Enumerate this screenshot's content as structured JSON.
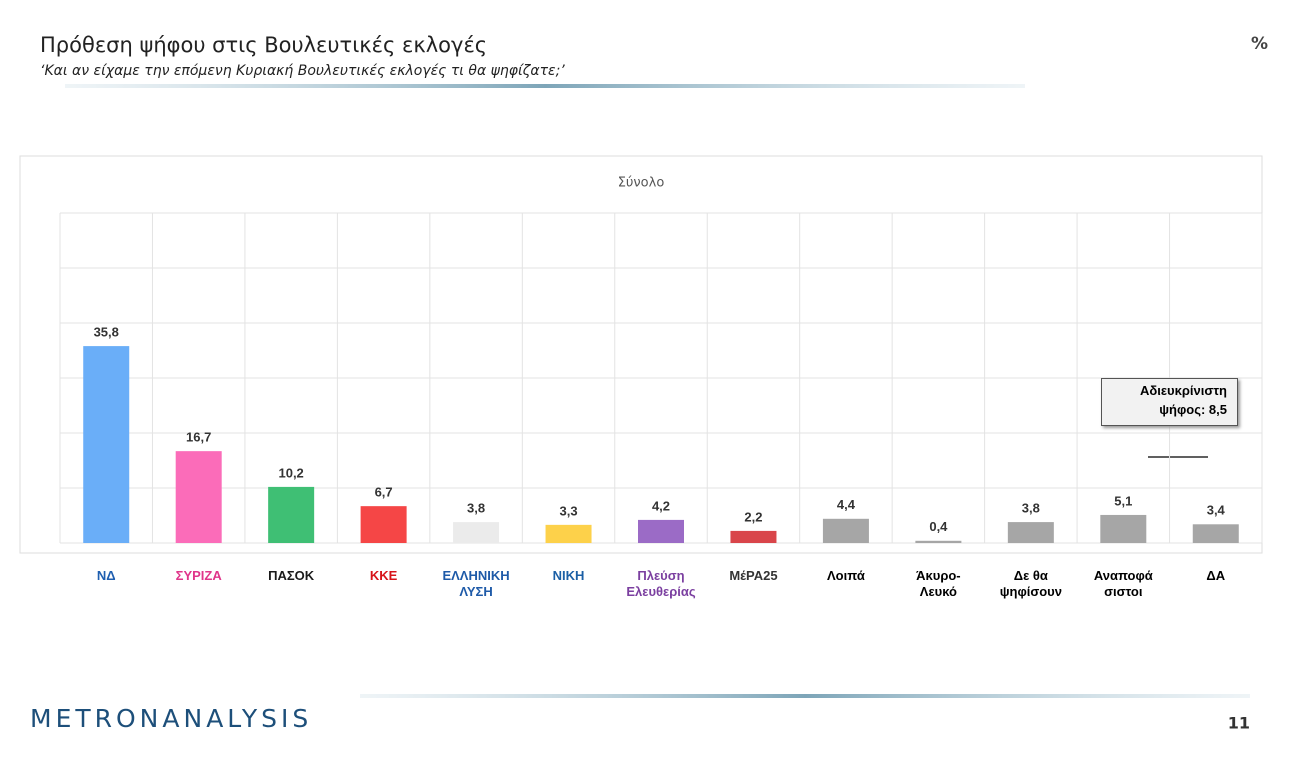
{
  "chart_data": {
    "type": "bar",
    "title": "Πρόθεση ψήφου στις Βουλευτικές εκλογές",
    "subtitle": "‘Και αν είχαμε την επόμενη Κυριακή Βουλευτικές εκλογές τι θα ψηφίζατε;’",
    "unit_label": "%",
    "panel_title": "Σύνολο",
    "categories": [
      "ΝΔ",
      "ΣΥΡΙΖΑ",
      "ΠΑΣΟΚ",
      "ΚΚΕ",
      "ΕΛΛΗΝΙΚΗ\nΛΥΣΗ",
      "ΝΙΚΗ",
      "Πλεύση\nΕλευθερίας",
      "ΜέΡΑ25",
      "Λοιπά",
      "Άκυρο-\nΛευκό",
      "Δε θα\nψηφίσουν",
      "Αναποφά\nσιστοι",
      "ΔΑ"
    ],
    "label_colors": [
      "#1f5fb0",
      "#e0358a",
      "#1a1a1a",
      "#d7141a",
      "#1e5aa8",
      "#1b5fa5",
      "#7b3fa0",
      "#333333",
      "#000000",
      "#000000",
      "#000000",
      "#000000",
      "#000000"
    ],
    "values": [
      35.8,
      16.7,
      10.2,
      6.7,
      3.8,
      3.3,
      4.2,
      2.2,
      4.4,
      0.4,
      3.8,
      5.1,
      3.4
    ],
    "value_labels": [
      "35,8",
      "16,7",
      "10,2",
      "6,7",
      "3,8",
      "3,3",
      "4,2",
      "2,2",
      "4,4",
      "0,4",
      "3,8",
      "5,1",
      "3,4"
    ],
    "colors": [
      "#6aaef8",
      "#fb6cb9",
      "#3fbf74",
      "#f54646",
      "#ebebeb",
      "#fdd14a",
      "#9b6bc6",
      "#d9454a",
      "#a6a6a6",
      "#a6a6a6",
      "#a6a6a6",
      "#a6a6a6",
      "#a6a6a6"
    ],
    "ylim": [
      0,
      60
    ],
    "yticks": [
      0,
      10,
      20,
      30,
      40,
      50,
      60
    ],
    "grid": true,
    "annotation": "Αδιευκρίνιστη\nψήφος: 8,5",
    "brand": "METRONANALYSIS",
    "page_number": "11"
  }
}
